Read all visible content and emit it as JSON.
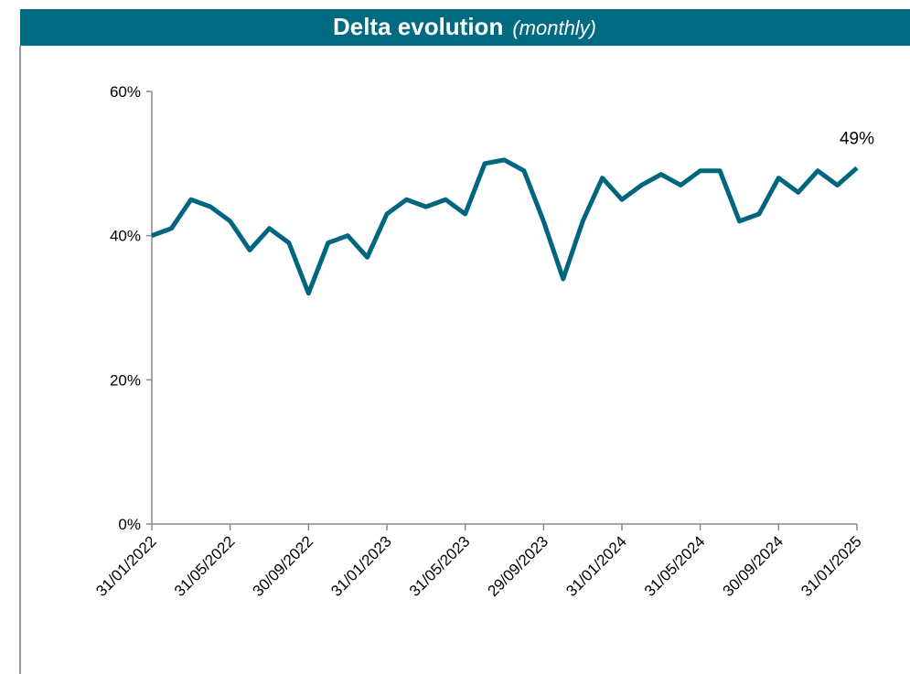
{
  "chart_data": {
    "type": "line",
    "title": "Delta evolution",
    "subtitle": "(monthly)",
    "categories": [
      "31/01/2022",
      null,
      null,
      null,
      "31/05/2022",
      null,
      null,
      null,
      "30/09/2022",
      null,
      null,
      null,
      "31/01/2023",
      null,
      null,
      null,
      "31/05/2023",
      null,
      null,
      null,
      "29/09/2023",
      null,
      null,
      null,
      "31/01/2024",
      null,
      null,
      null,
      "31/05/2024",
      null,
      null,
      null,
      "30/09/2024",
      null,
      null,
      null,
      "31/01/2025"
    ],
    "series": [
      {
        "name": "Delta",
        "color": "#00667f",
        "values": [
          40,
          41,
          45,
          44,
          42,
          38,
          41,
          39,
          32,
          39,
          40,
          37,
          43,
          45,
          44,
          45,
          43,
          50,
          50.5,
          49,
          42,
          34,
          42,
          48,
          45,
          47,
          48.5,
          47,
          49,
          49,
          42,
          43,
          48,
          46,
          49,
          47,
          49.4
        ],
        "value_labels": [
          null,
          null,
          null,
          null,
          null,
          null,
          null,
          null,
          null,
          null,
          null,
          null,
          null,
          null,
          null,
          null,
          null,
          null,
          null,
          null,
          null,
          null,
          null,
          null,
          null,
          null,
          null,
          null,
          null,
          null,
          null,
          null,
          null,
          null,
          null,
          null,
          "49%"
        ]
      }
    ],
    "ylim": [
      0,
      60
    ],
    "yticks": [
      {
        "value": 0,
        "label": "0%"
      },
      {
        "value": 20,
        "label": "20%"
      },
      {
        "value": 40,
        "label": "40%"
      },
      {
        "value": 60,
        "label": "60%"
      }
    ],
    "title_color": "#006a80"
  }
}
